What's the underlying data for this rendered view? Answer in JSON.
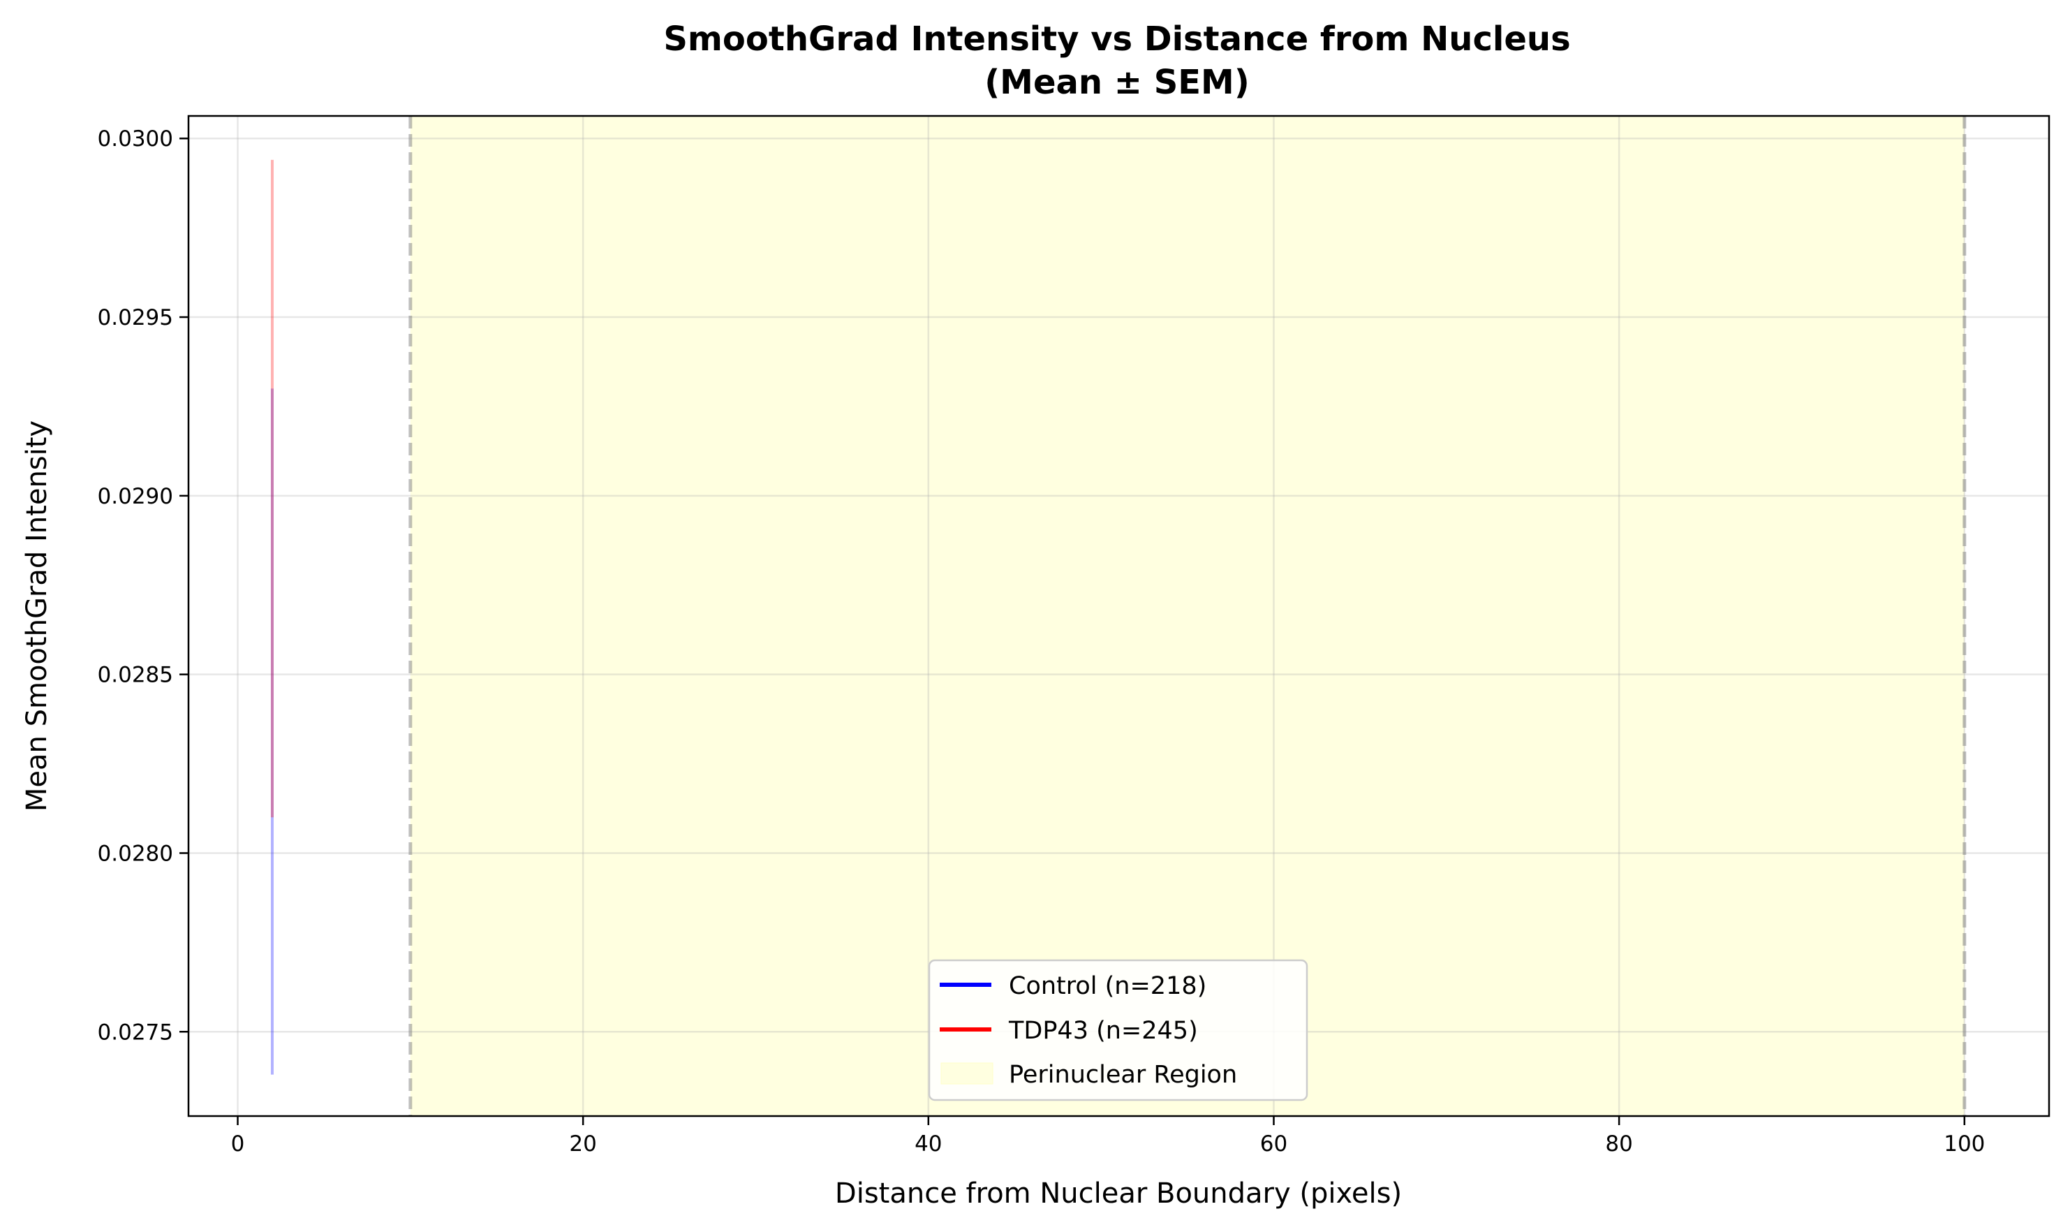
{
  "chart_data": {
    "type": "line",
    "title": "SmoothGrad Intensity vs Distance from Nucleus",
    "subtitle": "(Mean ± SEM)",
    "xlabel": "Distance from Nuclear Boundary (pixels)",
    "ylabel": "Mean SmoothGrad Intensity",
    "xlim": [
      -2.85,
      104.9
    ],
    "ylim": [
      0.027264,
      0.030063
    ],
    "xticks": [
      0,
      20,
      40,
      60,
      80,
      100
    ],
    "xtick_labels": [
      "0",
      "20",
      "40",
      "60",
      "80",
      "100"
    ],
    "yticks": [
      0.0275,
      0.028,
      0.0285,
      0.029,
      0.0295,
      0.03
    ],
    "ytick_labels": [
      "0.0275",
      "0.0280",
      "0.0285",
      "0.0290",
      "0.0295",
      "0.0300"
    ],
    "grid": true,
    "legend_position": "lower-center",
    "series": [
      {
        "name": "Control (n=218)",
        "color": "#0000ff",
        "x": [
          2
        ],
        "mean": [
          0.02834
        ],
        "sem": [
          0.00096
        ]
      },
      {
        "name": "TDP43 (n=245)",
        "color": "#ff0000",
        "x": [
          2
        ],
        "mean": [
          0.02902
        ],
        "sem": [
          0.00092
        ]
      }
    ],
    "region": {
      "name": "Perinuclear Region",
      "x_start": 10,
      "x_end": 100,
      "color": "#ffffe0"
    }
  }
}
